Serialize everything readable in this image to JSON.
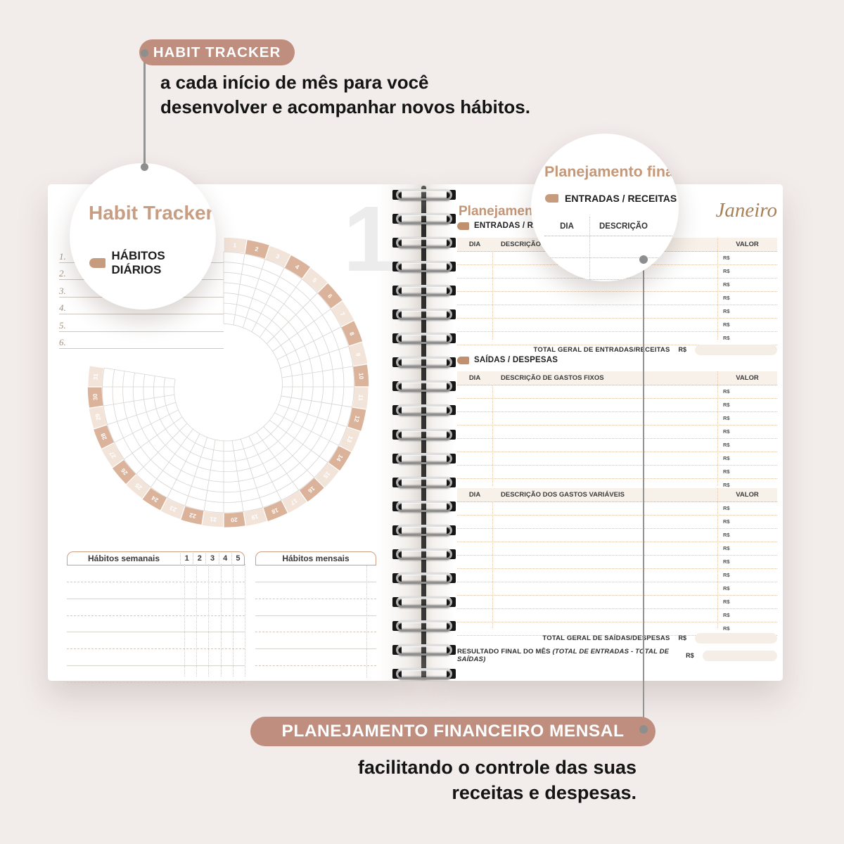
{
  "colors": {
    "background": "#f2eceb",
    "accent_rose": "#bf8e7e",
    "accent_tan": "#c49878",
    "wheel_cell_light": "#f3e4da",
    "wheel_cell_dark": "#dbb29a",
    "table_line": "#d9c3ac",
    "header_fill": "#f7f1ea",
    "field_fill": "#f5eee6",
    "leader_gray": "#8e8e8e"
  },
  "annotations": {
    "top": {
      "badge": "HABIT TRACKER",
      "line1": "a cada início de mês para você",
      "line2": "desenvolver e acompanhar novos hábitos."
    },
    "bottom": {
      "badge": "PLANEJAMENTO FINANCEIRO MENSAL",
      "line1": "facilitando o controle das suas",
      "line2": "receitas e despesas."
    }
  },
  "callouts": {
    "left": {
      "title": "Habit Tracker",
      "tag_label": "HÁBITOS DIÁRIOS"
    },
    "right": {
      "title": "Planejamento finance",
      "tag_label": "ENTRADAS / RECEITAS",
      "table_headers": [
        "DIA",
        "DESCRIÇÃO"
      ]
    }
  },
  "left_page": {
    "watermark": "1",
    "habit_list": [
      "1.",
      "2.",
      "3.",
      "4.",
      "5.",
      "6."
    ],
    "wheel": {
      "days": 31,
      "rings": 7,
      "first_day": 1
    },
    "weekly_table": {
      "title": "Hábitos semanais",
      "columns": [
        "1",
        "2",
        "3",
        "4",
        "5"
      ],
      "rows": 7
    },
    "monthly_table": {
      "title": "Hábitos mensais",
      "rows": 7
    }
  },
  "right_page": {
    "title": "Planejamento financeiro mensal",
    "month": "Janeiro",
    "currency": "R$",
    "entradas": {
      "tag_label": "ENTRADAS / RECEITAS",
      "headers": [
        "DIA",
        "DESCRIÇÃO",
        "VALOR"
      ],
      "rows": 7,
      "total_label": "TOTAL GERAL DE ENTRADAS/RECEITAS"
    },
    "saidas": {
      "tag_label": "SAÍDAS / DESPESAS",
      "fixed": {
        "headers": [
          "DIA",
          "DESCRIÇÃO DE GASTOS FIXOS",
          "VALOR"
        ],
        "rows": 8
      },
      "variable": {
        "headers": [
          "DIA",
          "DESCRIÇÃO DOS GASTOS VARIÁVEIS",
          "VALOR"
        ],
        "rows": 10
      },
      "total_label": "TOTAL GERAL DE SAÍDAS/DESPESAS"
    },
    "resultado": {
      "label": "RESULTADO FINAL DO MÊS",
      "formula": "(TOTAL DE ENTRADAS - TOTAL DE SAÍDAS)"
    }
  },
  "binding": {
    "loop_count": 21
  }
}
